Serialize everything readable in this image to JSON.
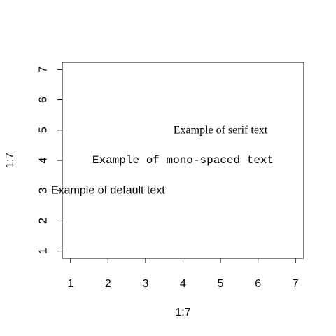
{
  "chart_data": {
    "type": "scatter",
    "title": "",
    "xlabel": "1:7",
    "ylabel": "1:7",
    "xlim": [
      0.78,
      7.22
    ],
    "ylim": [
      0.76,
      7.24
    ],
    "x_ticks": [
      1,
      2,
      3,
      4,
      5,
      6,
      7
    ],
    "y_ticks": [
      1,
      2,
      3,
      4,
      5,
      6,
      7
    ],
    "grid": false,
    "annotations": [
      {
        "text": "Example of default text",
        "x": 2,
        "y": 3,
        "font": "sans"
      },
      {
        "text": "Example of mono-spaced text",
        "x": 4,
        "y": 4,
        "font": "mono"
      },
      {
        "text": "Example of serif text",
        "x": 5,
        "y": 5,
        "font": "serif"
      }
    ]
  }
}
